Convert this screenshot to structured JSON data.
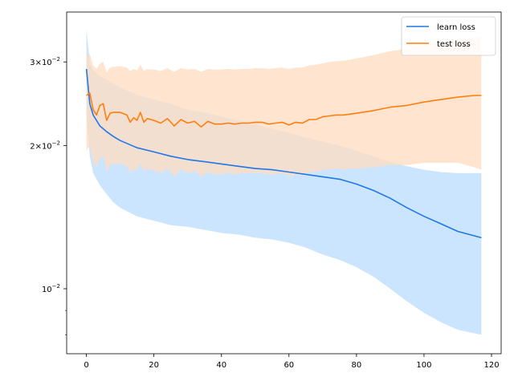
{
  "chart_data": {
    "type": "line",
    "title": "",
    "xlabel": "",
    "ylabel": "",
    "xlim": [
      -5.85,
      122.85
    ],
    "ylim": [
      0.0073,
      0.0382
    ],
    "yscale": "log",
    "x_ticks": [
      0,
      20,
      40,
      60,
      80,
      100,
      120
    ],
    "x_tick_labels": [
      "0",
      "20",
      "40",
      "60",
      "80",
      "100",
      "120"
    ],
    "y_major_ticks": [
      0.01,
      0.02,
      0.03
    ],
    "y_tick_labels": [
      {
        "mant": "10",
        "exp": "−2"
      },
      {
        "mant": "2×10",
        "exp": "−2"
      },
      {
        "mant": "3×10",
        "exp": "−2"
      }
    ],
    "y_minor_ticks": [
      0.008,
      0.009
    ],
    "grid": false,
    "legend": {
      "placement": "top-right",
      "entries": [
        "learn loss",
        "test loss"
      ]
    },
    "series": [
      {
        "name": "learn loss",
        "color": "#1f77e8",
        "band_color": "#cce5ff",
        "x": [
          0,
          1,
          2,
          4,
          6,
          8,
          10,
          15,
          20,
          25,
          30,
          35,
          40,
          45,
          50,
          55,
          60,
          65,
          70,
          75,
          80,
          85,
          90,
          95,
          100,
          105,
          110,
          117
        ],
        "values": [
          0.029,
          0.0245,
          0.0232,
          0.022,
          0.0214,
          0.0209,
          0.0205,
          0.0198,
          0.0194,
          0.019,
          0.0187,
          0.0185,
          0.0183,
          0.0181,
          0.0179,
          0.0178,
          0.0176,
          0.0174,
          0.0172,
          0.017,
          0.0166,
          0.0161,
          0.0155,
          0.0148,
          0.0142,
          0.0137,
          0.0132,
          0.0128
        ],
        "upper": [
          0.0352,
          0.03,
          0.0288,
          0.028,
          0.0275,
          0.027,
          0.0265,
          0.0256,
          0.025,
          0.0245,
          0.0238,
          0.0235,
          0.023,
          0.0226,
          0.0222,
          0.0217,
          0.0213,
          0.0208,
          0.0204,
          0.02,
          0.0195,
          0.019,
          0.0185,
          0.0181,
          0.0178,
          0.0176,
          0.0175,
          0.0175
        ],
        "lower": [
          0.023,
          0.019,
          0.0175,
          0.0165,
          0.0158,
          0.0152,
          0.0148,
          0.0142,
          0.0139,
          0.0136,
          0.0135,
          0.0133,
          0.0131,
          0.013,
          0.0128,
          0.0127,
          0.0125,
          0.0122,
          0.0118,
          0.0115,
          0.0111,
          0.0106,
          0.01,
          0.0094,
          0.0089,
          0.0085,
          0.0082,
          0.008
        ]
      },
      {
        "name": "test loss",
        "color": "#ff7f0e",
        "band_color": "#ffdcc0",
        "x": [
          0,
          1,
          2,
          3,
          4,
          5,
          6,
          7,
          8,
          10,
          12,
          13,
          14,
          15,
          16,
          17,
          18,
          20,
          22,
          24,
          26,
          28,
          30,
          32,
          34,
          36,
          38,
          40,
          42,
          44,
          46,
          48,
          50,
          52,
          54,
          56,
          58,
          60,
          62,
          64,
          66,
          68,
          70,
          72,
          74,
          76,
          78,
          80,
          85,
          90,
          95,
          100,
          105,
          110,
          115,
          117
        ],
        "values": [
          0.0255,
          0.0258,
          0.0238,
          0.0232,
          0.0243,
          0.0245,
          0.0226,
          0.0234,
          0.0235,
          0.0235,
          0.0232,
          0.0224,
          0.0229,
          0.0226,
          0.0235,
          0.0224,
          0.0228,
          0.0226,
          0.0223,
          0.0228,
          0.022,
          0.0227,
          0.0223,
          0.0225,
          0.0219,
          0.0225,
          0.0222,
          0.0222,
          0.0223,
          0.0222,
          0.0223,
          0.0223,
          0.0224,
          0.0224,
          0.0222,
          0.0223,
          0.0224,
          0.0221,
          0.0224,
          0.0223,
          0.0227,
          0.0227,
          0.023,
          0.0231,
          0.0232,
          0.0232,
          0.0233,
          0.0234,
          0.0237,
          0.0241,
          0.0243,
          0.0247,
          0.025,
          0.0253,
          0.0255,
          0.0255
        ],
        "upper": [
          0.031,
          0.0312,
          0.0295,
          0.029,
          0.0298,
          0.03,
          0.0285,
          0.0292,
          0.0293,
          0.0294,
          0.0292,
          0.0287,
          0.029,
          0.0288,
          0.0296,
          0.0287,
          0.029,
          0.0289,
          0.0287,
          0.0291,
          0.0286,
          0.0291,
          0.0289,
          0.029,
          0.0286,
          0.029,
          0.0289,
          0.0289,
          0.029,
          0.0289,
          0.029,
          0.029,
          0.0291,
          0.0291,
          0.029,
          0.0291,
          0.0292,
          0.029,
          0.0292,
          0.0292,
          0.0295,
          0.0296,
          0.0298,
          0.03,
          0.0301,
          0.0302,
          0.0303,
          0.0305,
          0.031,
          0.0316,
          0.032,
          0.0326,
          0.033,
          0.0335,
          0.0338,
          0.034
        ],
        "lower": [
          0.0195,
          0.02,
          0.0185,
          0.018,
          0.0188,
          0.019,
          0.0176,
          0.0182,
          0.0183,
          0.0183,
          0.0181,
          0.0175,
          0.0179,
          0.0177,
          0.0184,
          0.0176,
          0.0179,
          0.0177,
          0.0175,
          0.0179,
          0.0172,
          0.0178,
          0.0175,
          0.0177,
          0.0172,
          0.0176,
          0.0174,
          0.0174,
          0.0175,
          0.0174,
          0.0175,
          0.0175,
          0.0175,
          0.0175,
          0.0174,
          0.0174,
          0.0175,
          0.0172,
          0.0174,
          0.0173,
          0.0176,
          0.0176,
          0.0178,
          0.0178,
          0.0179,
          0.0178,
          0.0179,
          0.0179,
          0.018,
          0.0182,
          0.0182,
          0.0184,
          0.0184,
          0.0184,
          0.018,
          0.0178
        ]
      }
    ]
  }
}
